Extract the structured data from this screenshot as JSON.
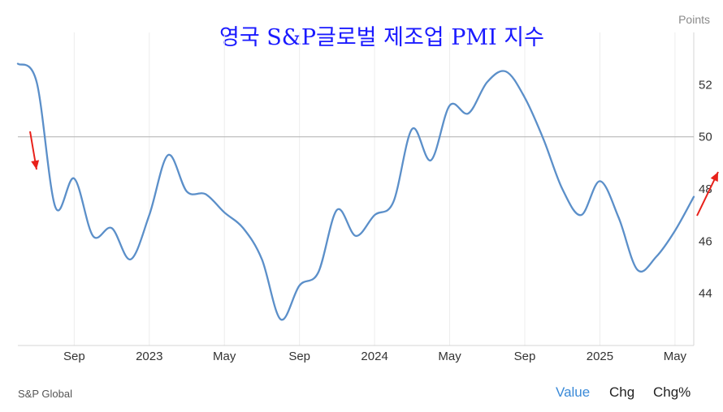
{
  "chart_data": {
    "type": "line",
    "title": "영국 S&P글로벌 제조업 PMI 지수",
    "unit_label": "Points",
    "ylim": [
      42.0,
      54.0
    ],
    "yticks": [
      44,
      46,
      48,
      50,
      52
    ],
    "reference_line": 50,
    "grid": "vertical",
    "x_start": "2022-06",
    "x_end": "2025-06",
    "xticks": [
      {
        "label": "Sep",
        "date": "2022-09"
      },
      {
        "label": "2023",
        "date": "2023-01"
      },
      {
        "label": "May",
        "date": "2023-05"
      },
      {
        "label": "Sep",
        "date": "2023-09"
      },
      {
        "label": "2024",
        "date": "2024-01"
      },
      {
        "label": "May",
        "date": "2024-05"
      },
      {
        "label": "Sep",
        "date": "2024-09"
      },
      {
        "label": "2025",
        "date": "2025-01"
      },
      {
        "label": "May",
        "date": "2025-05"
      }
    ],
    "series": [
      {
        "name": "",
        "color": "#5b8fc9",
        "points": [
          {
            "date": "2022-06",
            "value": 52.8
          },
          {
            "date": "2022-07",
            "value": 52.1
          },
          {
            "date": "2022-08",
            "value": 47.3
          },
          {
            "date": "2022-09",
            "value": 48.4
          },
          {
            "date": "2022-10",
            "value": 46.2
          },
          {
            "date": "2022-11",
            "value": 46.5
          },
          {
            "date": "2022-12",
            "value": 45.3
          },
          {
            "date": "2023-01",
            "value": 47.0
          },
          {
            "date": "2023-02",
            "value": 49.3
          },
          {
            "date": "2023-03",
            "value": 47.9
          },
          {
            "date": "2023-04",
            "value": 47.8
          },
          {
            "date": "2023-05",
            "value": 47.1
          },
          {
            "date": "2023-06",
            "value": 46.5
          },
          {
            "date": "2023-07",
            "value": 45.3
          },
          {
            "date": "2023-08",
            "value": 43.0
          },
          {
            "date": "2023-09",
            "value": 44.3
          },
          {
            "date": "2023-10",
            "value": 44.8
          },
          {
            "date": "2023-11",
            "value": 47.2
          },
          {
            "date": "2023-12",
            "value": 46.2
          },
          {
            "date": "2024-01",
            "value": 47.0
          },
          {
            "date": "2024-02",
            "value": 47.5
          },
          {
            "date": "2024-03",
            "value": 50.3
          },
          {
            "date": "2024-04",
            "value": 49.1
          },
          {
            "date": "2024-05",
            "value": 51.2
          },
          {
            "date": "2024-06",
            "value": 50.9
          },
          {
            "date": "2024-07",
            "value": 52.1
          },
          {
            "date": "2024-08",
            "value": 52.5
          },
          {
            "date": "2024-09",
            "value": 51.5
          },
          {
            "date": "2024-10",
            "value": 49.9
          },
          {
            "date": "2024-11",
            "value": 48.0
          },
          {
            "date": "2024-12",
            "value": 47.0
          },
          {
            "date": "2025-01",
            "value": 48.3
          },
          {
            "date": "2025-02",
            "value": 46.9
          },
          {
            "date": "2025-03",
            "value": 44.9
          },
          {
            "date": "2025-04",
            "value": 45.4
          },
          {
            "date": "2025-05",
            "value": 46.4
          },
          {
            "date": "2025-06",
            "value": 47.7
          }
        ]
      }
    ],
    "annotations": [
      {
        "type": "arrow",
        "direction": "down",
        "color": "#e8211a",
        "near": "2022-06"
      },
      {
        "type": "arrow",
        "direction": "up-right",
        "color": "#e8211a",
        "near": "2025-06"
      }
    ]
  },
  "footer": {
    "source": "S&P Global",
    "tabs": [
      {
        "label": "Value",
        "active": true
      },
      {
        "label": "Chg",
        "active": false
      },
      {
        "label": "Chg%",
        "active": false
      }
    ]
  }
}
